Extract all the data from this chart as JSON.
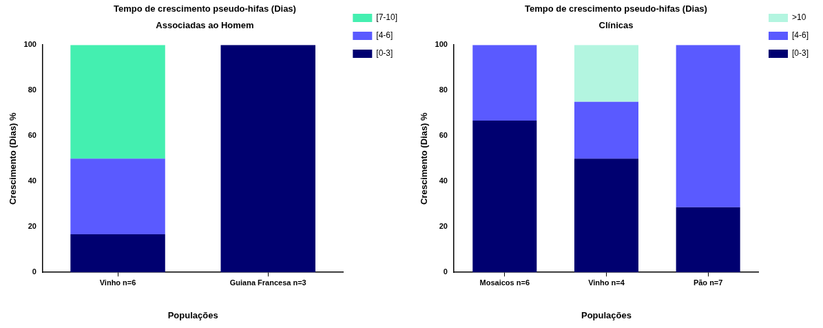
{
  "chart_data": [
    {
      "type": "bar",
      "title": "Tempo de crescimento pseudo-hifas (Dias)",
      "subtitle": "Associadas ao Homem",
      "xlabel": "Populações",
      "ylabel": "Crescimento (Dias) %",
      "categories": [
        "Vinho n=6",
        "Guiana Francesa n=3"
      ],
      "stacked": true,
      "ylim": [
        0,
        100
      ],
      "yticks": [
        0,
        20,
        40,
        60,
        80,
        100
      ],
      "grid": false,
      "legend": "right",
      "series": [
        {
          "name": "[0-3]",
          "color": "#000070",
          "values": [
            16.7,
            100
          ]
        },
        {
          "name": "[4-6]",
          "color": "#5a5aff",
          "values": [
            33.3,
            null
          ]
        },
        {
          "name": "[7-10]",
          "color": "#44efb0",
          "values": [
            50,
            null
          ]
        }
      ]
    },
    {
      "type": "bar",
      "title": "Tempo de crescimento pseudo-hifas (Dias)",
      "subtitle": "Clínicas",
      "xlabel": "Populações",
      "ylabel": "Crescimento (Dias) %",
      "categories": [
        "Mosaicos n=6",
        "Vinho n=4",
        "Pão n=7"
      ],
      "stacked": true,
      "ylim": [
        0,
        100
      ],
      "yticks": [
        0,
        20,
        40,
        60,
        80,
        100
      ],
      "grid": false,
      "legend": "right",
      "series": [
        {
          "name": "[0-3]",
          "color": "#000070",
          "values": [
            66.7,
            50,
            28.6
          ]
        },
        {
          "name": "[4-6]",
          "color": "#5a5aff",
          "values": [
            33.3,
            25,
            71.4
          ]
        },
        {
          "name": ">10",
          "color": "#b3f5e0",
          "values": [
            null,
            25,
            null
          ]
        }
      ]
    }
  ]
}
